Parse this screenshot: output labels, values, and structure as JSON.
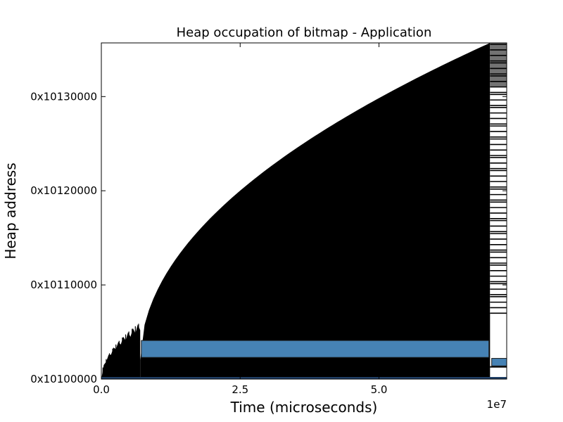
{
  "chart_data": {
    "type": "heatmap",
    "title": "Heap occupation of bitmap - Application",
    "xlabel": "Time (microseconds)",
    "ylabel": "Heap address",
    "x_offset_label": "1e7",
    "xlim": [
      0,
      7.3
    ],
    "x_ticks": [
      0,
      2.5,
      5.0
    ],
    "x_tick_labels": [
      "0.0",
      "2.5",
      "5.0"
    ],
    "ylim": [
      0,
      0.357
    ],
    "y_ticks": [
      0,
      0.1,
      0.2,
      0.3
    ],
    "y_tick_labels": [
      "0x10100000",
      "0x10110000",
      "0x10120000",
      "0x10130000"
    ],
    "series": [
      {
        "kind": "early-allocations",
        "x_range": [
          0,
          0.7
        ],
        "y_top_start": 0,
        "y_top_end": 0.06
      },
      {
        "kind": "growing-allocations",
        "x_range": [
          0.7,
          7.0
        ],
        "y_top_start": 0.02,
        "y_top_end": 0.357
      },
      {
        "kind": "late-stripes",
        "x_range": [
          7.0,
          7.3
        ],
        "y_top": 0.357,
        "y_bottom": 0.07
      }
    ],
    "highlight_blocks": [
      {
        "x": [
          0.72,
          6.98
        ],
        "y": [
          0.023,
          0.041
        ],
        "color": "#4682b4"
      },
      {
        "x": [
          7.03,
          7.3
        ],
        "y": [
          0.014,
          0.022
        ],
        "color": "#4682b4"
      }
    ],
    "colors": {
      "fill": "#000000",
      "highlight": "#4682b4",
      "background": "#ffffff"
    }
  }
}
